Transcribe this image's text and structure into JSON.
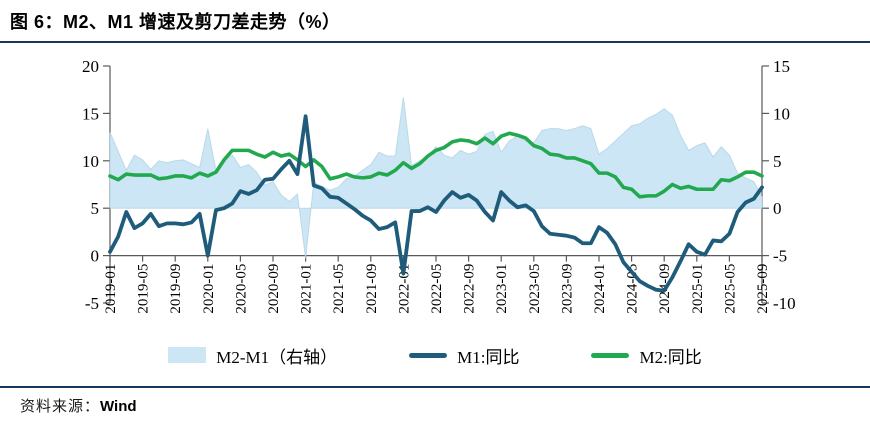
{
  "figure": {
    "title": "图 6：M2、M1 增速及剪刀差走势（%）",
    "source_label": "资料来源：",
    "source_value": "Wind"
  },
  "colors": {
    "rule_navy": "#17365D",
    "area_fill": "#CDE6F5",
    "area_edge": "#A9CFE3",
    "m1_line": "#1F5C7B",
    "m2_line": "#22A94F",
    "axis_gray": "#595959",
    "label_black": "#000000"
  },
  "legend": [
    {
      "label": "M2-M1（右轴）",
      "swatch": "area",
      "color_key": "area_fill"
    },
    {
      "label": "M1:同比",
      "swatch": "line",
      "color_key": "m1_line"
    },
    {
      "label": "M2:同比",
      "swatch": "line",
      "color_key": "m2_line"
    }
  ],
  "chart_data": {
    "type": "combo(area+line)",
    "x_start_month": "2019-01",
    "x_end_month": "2025-09",
    "x_tick_labels": [
      "2019-01",
      "2019-05",
      "2019-09",
      "2020-01",
      "2020-05",
      "2020-09",
      "2021-01",
      "2021-05",
      "2021-09",
      "2022-01",
      "2022-05",
      "2022-09",
      "2023-01",
      "2023-05",
      "2023-09",
      "2024-01",
      "2024-05",
      "2024-09",
      "2025-01",
      "2025-05",
      "2025-09"
    ],
    "left_axis": {
      "ticks": [
        20,
        15,
        10,
        5,
        0,
        -5
      ],
      "min": -5,
      "max": 20
    },
    "right_axis": {
      "ticks": [
        15,
        10,
        5,
        0,
        -5,
        -10
      ],
      "min": -10,
      "max": 15,
      "offset_vs_left": 5
    },
    "grid": false,
    "legend_position": "bottom",
    "series": [
      {
        "name": "M2-M1（右轴）",
        "type": "area",
        "axis": "right",
        "values": [
          8.0,
          6.0,
          4.0,
          5.6,
          5.1,
          4.1,
          5.0,
          4.8,
          5.0,
          5.1,
          4.7,
          4.3,
          8.4,
          4.0,
          5.1,
          5.6,
          4.3,
          4.6,
          3.8,
          2.4,
          2.8,
          1.4,
          0.7,
          1.5,
          -5.3,
          2.7,
          2.3,
          1.9,
          2.2,
          3.1,
          3.4,
          4.0,
          4.6,
          5.9,
          5.5,
          5.5,
          11.7,
          4.5,
          5.0,
          5.4,
          6.5,
          5.6,
          5.3,
          6.1,
          5.7,
          6.0,
          7.8,
          8.1,
          5.9,
          7.1,
          7.6,
          7.1,
          6.9,
          8.2,
          8.4,
          8.4,
          8.2,
          8.4,
          8.7,
          8.4,
          5.7,
          6.3,
          7.1,
          7.9,
          8.7,
          8.9,
          9.5,
          9.9,
          10.5,
          9.8,
          7.7,
          6.1,
          6.6,
          6.9,
          5.4,
          6.5,
          5.6,
          3.7,
          3.2,
          2.8,
          1.2
        ]
      },
      {
        "name": "M1:同比",
        "type": "line",
        "axis": "left",
        "values": [
          0.4,
          2.0,
          4.6,
          2.9,
          3.4,
          4.4,
          3.1,
          3.4,
          3.4,
          3.3,
          3.5,
          4.4,
          0.0,
          4.8,
          5.0,
          5.5,
          6.8,
          6.5,
          6.9,
          8.0,
          8.1,
          9.1,
          10.0,
          8.6,
          14.7,
          7.4,
          7.1,
          6.2,
          6.1,
          5.5,
          4.9,
          4.2,
          3.7,
          2.8,
          3.0,
          3.5,
          -1.9,
          4.7,
          4.7,
          5.1,
          4.6,
          5.8,
          6.7,
          6.1,
          6.4,
          5.8,
          4.6,
          3.7,
          6.7,
          5.8,
          5.1,
          5.3,
          4.7,
          3.1,
          2.3,
          2.2,
          2.1,
          1.9,
          1.3,
          1.3,
          3.0,
          2.4,
          1.2,
          -0.7,
          -1.7,
          -2.7,
          -3.2,
          -3.6,
          -3.7,
          -2.3,
          -0.6,
          1.2,
          0.4,
          0.1,
          1.6,
          1.5,
          2.3,
          4.6,
          5.6,
          6.0,
          7.2
        ]
      },
      {
        "name": "M2:同比",
        "type": "line",
        "axis": "left",
        "values": [
          8.4,
          8.0,
          8.6,
          8.5,
          8.5,
          8.5,
          8.1,
          8.2,
          8.4,
          8.4,
          8.2,
          8.7,
          8.4,
          8.8,
          10.1,
          11.1,
          11.1,
          11.1,
          10.7,
          10.4,
          10.9,
          10.5,
          10.7,
          10.1,
          9.4,
          10.1,
          9.4,
          8.1,
          8.3,
          8.6,
          8.3,
          8.2,
          8.3,
          8.7,
          8.5,
          9.0,
          9.8,
          9.2,
          9.7,
          10.5,
          11.1,
          11.4,
          12.0,
          12.2,
          12.1,
          11.8,
          12.4,
          11.8,
          12.6,
          12.9,
          12.7,
          12.4,
          11.6,
          11.3,
          10.7,
          10.6,
          10.3,
          10.3,
          10.0,
          9.7,
          8.7,
          8.7,
          8.3,
          7.2,
          7.0,
          6.2,
          6.3,
          6.3,
          6.8,
          7.5,
          7.1,
          7.3,
          7.0,
          7.0,
          7.0,
          8.0,
          7.9,
          8.3,
          8.8,
          8.8,
          8.4
        ]
      }
    ]
  }
}
